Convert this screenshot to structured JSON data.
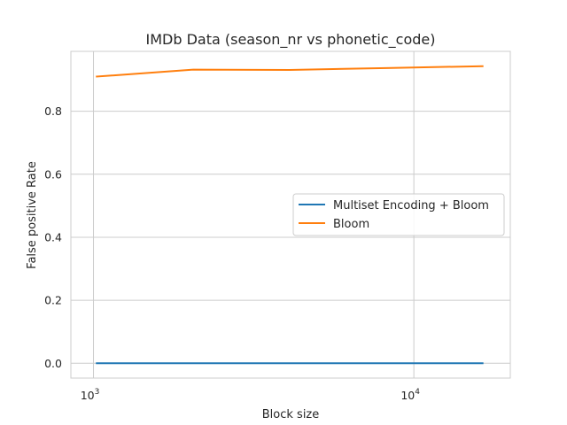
{
  "chart_data": {
    "type": "line",
    "title": "IMDb Data (season_nr vs phonetic_code)",
    "xlabel": "Block size",
    "ylabel": "False positive Rate",
    "x_scale": "log",
    "xlim": [
      850,
      20000
    ],
    "ylim": [
      -0.047,
      0.99
    ],
    "grid": true,
    "legend_position": "center-right",
    "x_ticks": [
      {
        "value": 1000,
        "base": "10",
        "exp": "3"
      },
      {
        "value": 10000,
        "base": "10",
        "exp": "4"
      }
    ],
    "y_ticks": [
      {
        "value": 0.0,
        "label": "0.0"
      },
      {
        "value": 0.2,
        "label": "0.2"
      },
      {
        "value": 0.4,
        "label": "0.4"
      },
      {
        "value": 0.6,
        "label": "0.6"
      },
      {
        "value": 0.8,
        "label": "0.8"
      }
    ],
    "series": [
      {
        "name": "Multiset Encoding + Bloom",
        "color": "#1f77b4",
        "x": [
          1024,
          2048,
          4096,
          8192,
          16384
        ],
        "y": [
          0.0,
          0.0,
          0.0,
          0.0,
          0.0
        ]
      },
      {
        "name": "Bloom",
        "color": "#ff7f0e",
        "x": [
          1024,
          2048,
          4096,
          8192,
          16384
        ],
        "y": [
          0.91,
          0.932,
          0.931,
          0.937,
          0.943
        ]
      }
    ]
  }
}
